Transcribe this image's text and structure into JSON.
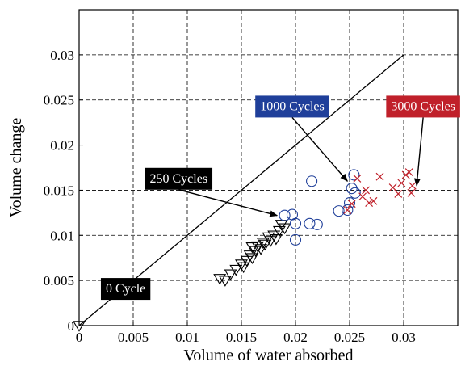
{
  "chart_data": {
    "type": "scatter",
    "xlabel": "Volume of water absorbed",
    "ylabel": "Volume change",
    "xlim": [
      0,
      0.035
    ],
    "ylim": [
      0,
      0.035
    ],
    "xticks": [
      0,
      0.005,
      0.01,
      0.015,
      0.02,
      0.025,
      0.03
    ],
    "xtick_labels": [
      "0",
      "0.005",
      "0.01",
      "0.015",
      "0.02",
      "0.025",
      "0.03"
    ],
    "yticks": [
      0,
      0.005,
      0.01,
      0.015,
      0.02,
      0.025,
      0.03
    ],
    "ytick_labels": [
      "0",
      "0.005",
      "0.01",
      "0.015",
      "0.02",
      "0.025",
      "0.03"
    ],
    "grid": true,
    "reference_line": {
      "x": [
        0,
        0.03
      ],
      "y": [
        0,
        0.03
      ]
    },
    "series": [
      {
        "marker": "triangle-down",
        "color": "#000000",
        "points": [
          [
            0,
            0
          ],
          [
            0.013,
            0.0052
          ],
          [
            0.0135,
            0.005
          ],
          [
            0.014,
            0.0057
          ],
          [
            0.0145,
            0.0062
          ],
          [
            0.015,
            0.0068
          ],
          [
            0.0152,
            0.0065
          ],
          [
            0.0155,
            0.0072
          ],
          [
            0.0158,
            0.0078
          ],
          [
            0.016,
            0.0075
          ],
          [
            0.016,
            0.0087
          ],
          [
            0.0163,
            0.0083
          ],
          [
            0.0165,
            0.0088
          ],
          [
            0.0168,
            0.0085
          ],
          [
            0.017,
            0.0092
          ],
          [
            0.0172,
            0.009
          ],
          [
            0.0175,
            0.0098
          ],
          [
            0.0177,
            0.0094
          ],
          [
            0.018,
            0.01
          ],
          [
            0.0182,
            0.0096
          ],
          [
            0.0185,
            0.0105
          ],
          [
            0.0187,
            0.0112
          ],
          [
            0.019,
            0.0108
          ]
        ]
      },
      {
        "marker": "circle",
        "color": "#1f3f9a",
        "points": [
          [
            0.019,
            0.0122
          ],
          [
            0.0197,
            0.0123
          ],
          [
            0.02,
            0.0113
          ],
          [
            0.02,
            0.0095
          ],
          [
            0.0213,
            0.0113
          ],
          [
            0.0215,
            0.016
          ],
          [
            0.022,
            0.0112
          ],
          [
            0.024,
            0.0127
          ],
          [
            0.0248,
            0.0128
          ],
          [
            0.025,
            0.0136
          ],
          [
            0.0252,
            0.0152
          ],
          [
            0.0254,
            0.0167
          ],
          [
            0.0255,
            0.0147
          ]
        ]
      },
      {
        "marker": "x",
        "color": "#c0202a",
        "points": [
          [
            0.0248,
            0.0128
          ],
          [
            0.0252,
            0.0135
          ],
          [
            0.0257,
            0.0163
          ],
          [
            0.0262,
            0.0143
          ],
          [
            0.0265,
            0.015
          ],
          [
            0.0268,
            0.0136
          ],
          [
            0.0272,
            0.0138
          ],
          [
            0.0278,
            0.0165
          ],
          [
            0.029,
            0.0153
          ],
          [
            0.0295,
            0.0146
          ],
          [
            0.0298,
            0.0158
          ],
          [
            0.0302,
            0.0167
          ],
          [
            0.0305,
            0.017
          ],
          [
            0.0307,
            0.0147
          ],
          [
            0.0308,
            0.0155
          ]
        ]
      }
    ],
    "annotations": [
      {
        "text": "0 Cycle",
        "bg": "#000000",
        "x": 0.0043,
        "y": 0.0042,
        "arrow_to": null
      },
      {
        "text": "250 Cycles",
        "bg": "#000000",
        "x": 0.0092,
        "y": 0.0164,
        "arrow_to": [
          0.0183,
          0.0122
        ]
      },
      {
        "text": "1000 Cycles",
        "bg": "#1f3f9a",
        "x": 0.0197,
        "y": 0.0244,
        "arrow_to": [
          0.0248,
          0.016
        ]
      },
      {
        "text": "3000 Cycles",
        "bg": "#c0202a",
        "x": 0.0318,
        "y": 0.0244,
        "arrow_to": [
          0.0312,
          0.0155
        ]
      }
    ]
  }
}
